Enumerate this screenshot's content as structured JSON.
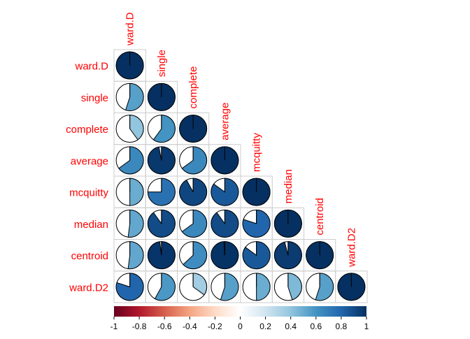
{
  "chart_data": {
    "type": "corrplot",
    "method": "pie",
    "layout": "lower-triangle",
    "labels": [
      "ward.D",
      "single",
      "complete",
      "average",
      "mcquitty",
      "median",
      "centroid",
      "ward.D2"
    ],
    "values": [
      [
        1.0
      ],
      [
        0.55,
        1.0
      ],
      [
        0.4,
        0.6,
        1.0
      ],
      [
        0.65,
        0.97,
        0.65,
        1.0
      ],
      [
        0.5,
        0.75,
        0.92,
        0.85,
        1.0
      ],
      [
        0.52,
        0.9,
        0.65,
        0.9,
        0.8,
        1.0
      ],
      [
        0.52,
        0.98,
        0.63,
        0.99,
        0.85,
        0.96,
        1.0
      ],
      [
        0.8,
        0.58,
        0.35,
        0.55,
        0.5,
        0.45,
        0.55,
        1.0
      ]
    ],
    "colorbar": {
      "range": [
        -1,
        1
      ],
      "ticks": [
        "-1",
        "-0.8",
        "-0.6",
        "-0.4",
        "-0.2",
        "0",
        "0.2",
        "0.4",
        "0.6",
        "0.8",
        "1"
      ]
    },
    "colors": {
      "label": "#ff0000",
      "grid": "#cccccc",
      "low": "#67001f",
      "mid": "#ffffff",
      "high": "#053061"
    }
  }
}
